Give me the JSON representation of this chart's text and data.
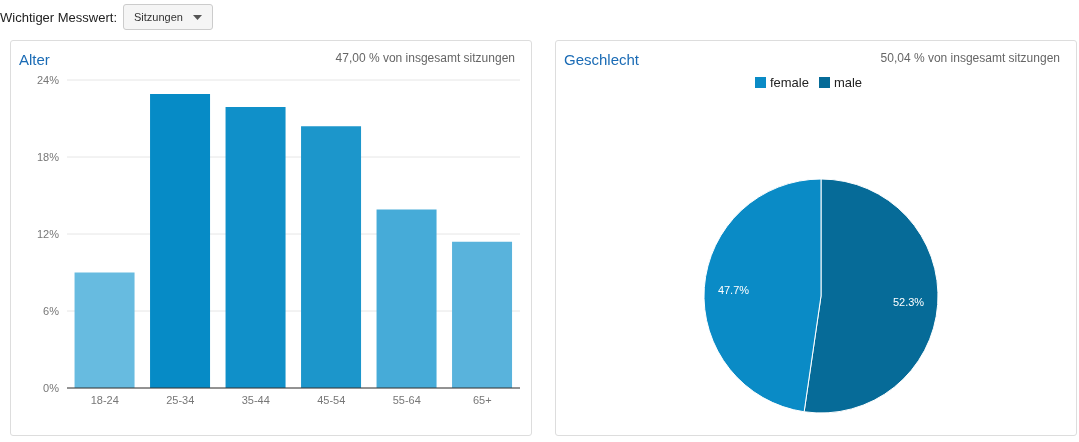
{
  "chart_data": [
    {
      "type": "bar",
      "title": "Alter",
      "subtitle": "47,00 % von insgesamt sitzungen",
      "annotations": [
        "Wichtiger Messwert:",
        "Sitzungen"
      ],
      "categories": [
        "18-24",
        "25-34",
        "35-44",
        "45-54",
        "55-64",
        "65+"
      ],
      "values": [
        9.0,
        22.9,
        21.9,
        20.4,
        13.9,
        11.4
      ],
      "colors": [
        "#67bbe0",
        "#068bc6",
        "#1090c9",
        "#1c96cb",
        "#46abd8",
        "#59b3dc"
      ],
      "ylim": [
        0,
        24
      ],
      "yticks": [
        {
          "value": 0,
          "label": "0%"
        },
        {
          "value": 6,
          "label": "6%"
        },
        {
          "value": 12,
          "label": "12%"
        },
        {
          "value": 18,
          "label": "18%"
        },
        {
          "value": 24,
          "label": "24%"
        }
      ],
      "grid": "y",
      "legend": false
    },
    {
      "type": "pie",
      "title": "Geschlecht",
      "subtitle": "50,04 % von insgesamt sitzungen",
      "categories": [
        "male",
        "female"
      ],
      "values": [
        52.3,
        47.7
      ],
      "colors": [
        "#066b98",
        "#0a8bc6"
      ],
      "value_labels": [
        "52.3%",
        "47.7%"
      ],
      "legend": "top"
    }
  ]
}
